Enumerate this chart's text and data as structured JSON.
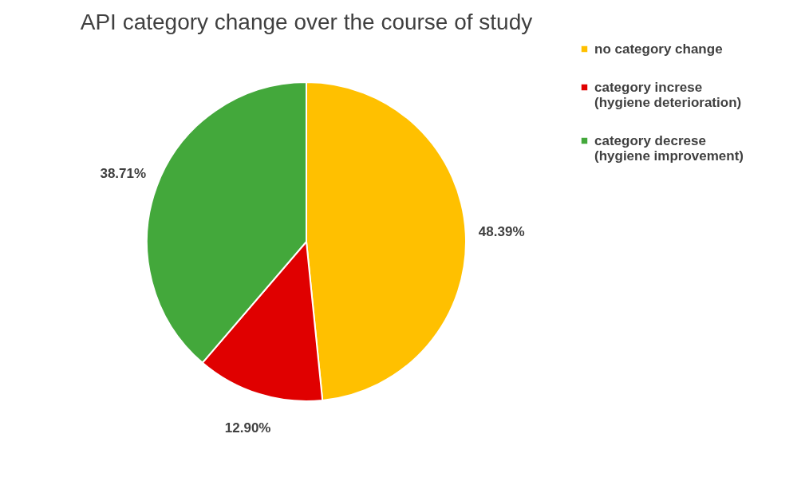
{
  "chart_data": {
    "type": "pie",
    "title": "API category change over the course of study",
    "categories": [
      "no category change",
      "category increse\n(hygiene deterioration)",
      "category decrese\n(hygiene improvement)"
    ],
    "values": [
      48.39,
      12.9,
      38.71
    ],
    "colors": [
      "#ffc000",
      "#e00000",
      "#43a83b"
    ],
    "value_labels": [
      "48.39%",
      "12.90%",
      "38.71%"
    ],
    "legend": "right"
  }
}
